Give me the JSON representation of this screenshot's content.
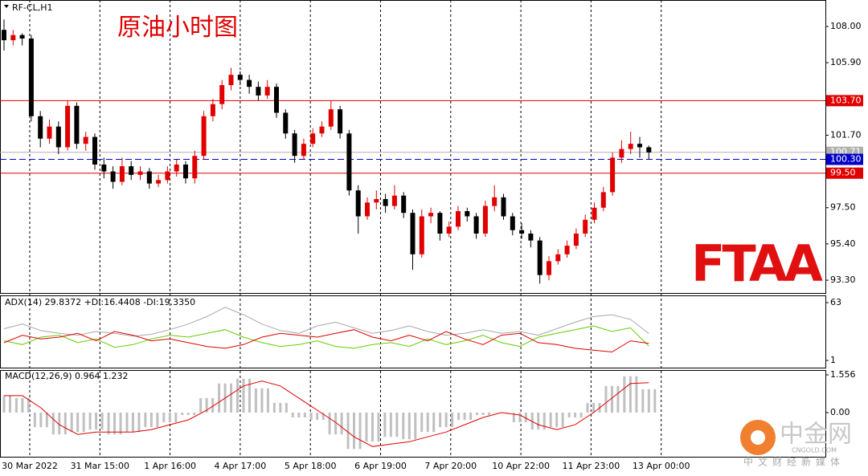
{
  "chart_data": [
    {
      "type": "candlestick",
      "title": "原油小时图",
      "symbol": "RF-CL,H1",
      "open": [
        107.8,
        107.2,
        107.5,
        107.3,
        102.8,
        101.5,
        102.2,
        101.0,
        103.4,
        101.2,
        101.6,
        100.0,
        99.6,
        99.0,
        99.9,
        99.4,
        99.6,
        98.9,
        99.1,
        99.6,
        100.0,
        99.2,
        100.5,
        102.8,
        103.5,
        104.6,
        105.2,
        104.9,
        104.5,
        104.0,
        104.5,
        103.0,
        101.8,
        100.5,
        101.2,
        101.8,
        102.2,
        103.2,
        101.8,
        98.5,
        97.0,
        97.8,
        98.0,
        97.6,
        98.2,
        97.2,
        94.8,
        97.0,
        97.2,
        96.0,
        96.4,
        97.3,
        97.0,
        96.0,
        97.6,
        98.1,
        97.0,
        96.2,
        96.0,
        95.6,
        93.6,
        94.4,
        94.8,
        95.3,
        96.0,
        96.8,
        97.5,
        98.4,
        100.4,
        100.9,
        101.2,
        101.0
      ],
      "high": [
        108.4,
        107.8,
        107.6,
        107.5,
        103.1,
        102.6,
        102.5,
        103.7,
        103.6,
        101.9,
        101.8,
        100.4,
        99.9,
        100.4,
        100.2,
        99.9,
        99.8,
        99.4,
        99.9,
        100.3,
        100.2,
        100.8,
        103.1,
        103.8,
        104.9,
        105.6,
        105.4,
        105.2,
        104.8,
        104.9,
        104.7,
        103.2,
        102.0,
        101.5,
        102.1,
        102.5,
        103.7,
        103.4,
        102.0,
        98.8,
        98.1,
        98.5,
        98.3,
        98.8,
        98.4,
        97.4,
        97.4,
        97.5,
        97.3,
        96.7,
        97.6,
        97.5,
        97.2,
        97.9,
        98.8,
        98.3,
        97.2,
        96.6,
        96.2,
        95.8,
        94.7,
        95.1,
        95.6,
        96.3,
        97.1,
        97.8,
        98.7,
        100.7,
        101.4,
        101.9,
        101.6,
        101.1
      ],
      "low": [
        106.6,
        106.9,
        106.9,
        102.5,
        101.0,
        101.2,
        100.6,
        100.8,
        100.9,
        100.8,
        99.7,
        99.2,
        98.6,
        98.8,
        99.1,
        99.1,
        98.6,
        98.7,
        98.9,
        99.3,
        98.9,
        98.9,
        100.3,
        102.5,
        103.2,
        104.3,
        104.6,
        104.1,
        103.7,
        103.8,
        102.7,
        101.5,
        100.1,
        100.3,
        101.0,
        101.6,
        102.0,
        101.5,
        98.2,
        96.0,
        96.8,
        97.4,
        97.2,
        97.4,
        96.9,
        93.9,
        94.6,
        96.6,
        95.6,
        95.8,
        96.2,
        96.7,
        95.7,
        95.8,
        97.3,
        96.8,
        95.9,
        95.7,
        95.2,
        93.1,
        93.3,
        94.2,
        94.6,
        95.1,
        95.8,
        96.6,
        97.3,
        98.2,
        100.1,
        100.6,
        100.4,
        100.3
      ],
      "close": [
        107.2,
        107.5,
        107.3,
        102.8,
        101.5,
        102.2,
        101.0,
        103.4,
        101.2,
        101.6,
        100.0,
        99.6,
        99.0,
        99.9,
        99.4,
        99.6,
        98.9,
        99.1,
        99.6,
        100.0,
        99.2,
        100.5,
        102.8,
        103.5,
        104.6,
        105.2,
        104.9,
        104.5,
        104.0,
        104.5,
        103.0,
        101.8,
        100.5,
        101.2,
        101.8,
        102.2,
        103.2,
        101.8,
        98.5,
        97.0,
        97.8,
        98.0,
        97.6,
        98.2,
        97.2,
        94.8,
        97.0,
        97.2,
        96.0,
        96.4,
        97.3,
        97.0,
        96.0,
        97.6,
        98.1,
        97.0,
        96.2,
        96.0,
        95.6,
        93.6,
        94.4,
        94.8,
        95.3,
        96.0,
        96.8,
        97.5,
        98.4,
        100.4,
        100.9,
        101.2,
        101.0,
        100.7
      ],
      "up_color": "#e00000",
      "down_color": "#000000",
      "ylim": [
        92.56,
        109.53
      ],
      "yticks": [
        {
          "value": 108,
          "label": "108.00"
        },
        {
          "value": 105.9,
          "label": "105.90"
        },
        {
          "value": 101.7,
          "label": "101.70"
        },
        {
          "value": 97.5,
          "label": "97.50"
        },
        {
          "value": 95.4,
          "label": "95.40"
        },
        {
          "value": 93.3,
          "label": "93.30"
        }
      ],
      "levels": [
        {
          "value": 103.7,
          "label": "103.70",
          "color": "#e00000",
          "dash": false
        },
        {
          "value": 100.71,
          "label": "100.71",
          "color": "#b0b0b0",
          "dash": false
        },
        {
          "value": 100.3,
          "label": "100.30",
          "color": "#0000c8",
          "dash": true
        },
        {
          "value": 99.5,
          "label": "99.50",
          "color": "#e00000",
          "dash": false
        }
      ],
      "x_labels": [
        "30 Mar 2022",
        "31 Mar 15:00",
        "1 Apr 16:00",
        "4 Apr 17:00",
        "5 Apr 18:00",
        "6 Apr 19:00",
        "7 Apr 20:00",
        "10 Apr 22:00",
        "11 Apr 23:00",
        "13 Apr 00:00"
      ]
    },
    {
      "type": "line",
      "label": "ADX(14) 29.8372 +DI:16.4408 -DI:19.3350",
      "series": [
        {
          "color": "#a8a8a8",
          "values": [
            35,
            40,
            33,
            30,
            28,
            32,
            30,
            27,
            29,
            34,
            40,
            48,
            58,
            50,
            40,
            33,
            30,
            38,
            42,
            36,
            30,
            33,
            38,
            32,
            28,
            30,
            34,
            30,
            32,
            28,
            35,
            42,
            48,
            50,
            45,
            29.8372
          ]
        },
        {
          "color": "#66cc00",
          "values": [
            22,
            18,
            26,
            28,
            20,
            24,
            15,
            18,
            24,
            28,
            26,
            30,
            34,
            26,
            20,
            16,
            18,
            22,
            16,
            14,
            18,
            20,
            16,
            24,
            18,
            22,
            28,
            20,
            16,
            26,
            30,
            34,
            38,
            32,
            36,
            16.4408
          ]
        },
        {
          "color": "#e00000",
          "values": [
            20,
            28,
            24,
            26,
            30,
            22,
            32,
            28,
            22,
            24,
            20,
            16,
            14,
            18,
            26,
            30,
            28,
            26,
            30,
            34,
            26,
            22,
            28,
            22,
            32,
            24,
            18,
            28,
            30,
            20,
            18,
            14,
            12,
            10,
            22,
            19.335
          ]
        }
      ],
      "ylim": [
        -6.75,
        70.75
      ],
      "yticks": [
        63,
        1
      ]
    },
    {
      "type": "macd",
      "label": "MACD(12,26,9) 0.964 1.232",
      "histogram": {
        "color": "#c0c0c0",
        "values": [
          0.7,
          0.6,
          -0.6,
          -0.9,
          -0.8,
          -0.7,
          -0.9,
          -0.8,
          -0.6,
          -0.4,
          -0.1,
          0.6,
          1.2,
          1.4,
          1.0,
          0.4,
          -0.2,
          -0.3,
          -0.9,
          -1.5,
          -1.2,
          -1.0,
          -1.1,
          -0.8,
          -0.6,
          -0.3,
          -0.1,
          0.0,
          -0.4,
          -0.7,
          -0.6,
          -0.2,
          0.4,
          1.1,
          1.5,
          0.964
        ]
      },
      "signal": {
        "color": "#e00000",
        "values": [
          0.7,
          0.7,
          0.2,
          -0.5,
          -0.9,
          -0.8,
          -0.8,
          -0.8,
          -0.7,
          -0.5,
          -0.3,
          0.1,
          0.6,
          1.1,
          1.3,
          1.1,
          0.6,
          0.1,
          -0.4,
          -1.0,
          -1.4,
          -1.3,
          -1.2,
          -1.0,
          -0.8,
          -0.5,
          -0.2,
          0.0,
          -0.1,
          -0.5,
          -0.7,
          -0.5,
          0.0,
          0.6,
          1.2,
          1.232
        ]
      },
      "ylim": [
        -1.82,
        1.755
      ],
      "yticks": [
        1.556,
        {
          "value": 0,
          "label": "0.00"
        }
      ]
    }
  ],
  "watermarks": {
    "logo": "FTAA",
    "brand": "中金网",
    "site": "CNGOLD.COM",
    "slogan": "中文财经新媒体"
  }
}
